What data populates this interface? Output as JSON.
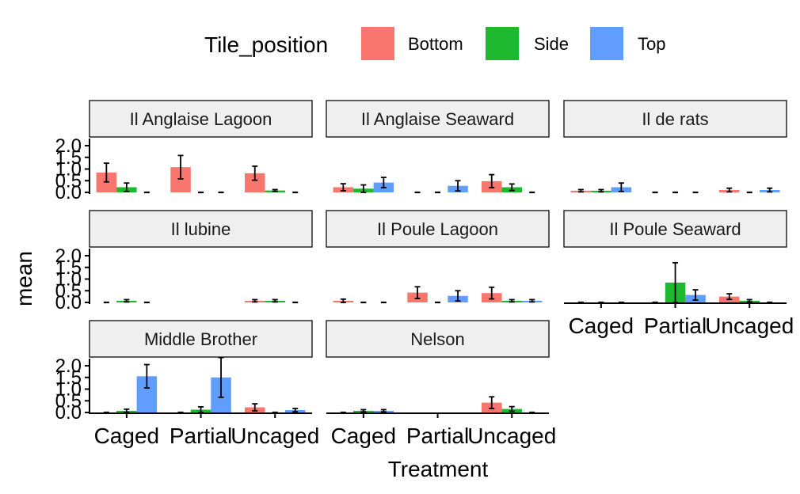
{
  "chart_data": {
    "type": "bar",
    "xlabel": "Treatment",
    "ylabel": "mean",
    "ylim": [
      0,
      2.0
    ],
    "yticks": [
      "0.0",
      "0.5",
      "1.0",
      "1.5",
      "2.0"
    ],
    "categories": [
      "Caged",
      "Partial",
      "Uncaged"
    ],
    "legend": {
      "title": "Tile_position",
      "position": "top",
      "entries": [
        {
          "name": "Bottom",
          "color": "#F8766D"
        },
        {
          "name": "Side",
          "color": "#1DB82D"
        },
        {
          "name": "Top",
          "color": "#619CFF"
        }
      ]
    },
    "panels": [
      {
        "title": "Il Anglaise Lagoon",
        "groups": [
          [
            {
              "v": 0.85,
              "e": 0.4
            },
            {
              "v": 0.22,
              "e": 0.18
            },
            {
              "v": 0
            }
          ],
          [
            {
              "v": 1.08,
              "e": 0.5
            },
            {
              "v": 0
            },
            {
              "v": 0
            }
          ],
          [
            {
              "v": 0.82,
              "e": 0.3
            },
            {
              "v": 0.08,
              "e": 0.04
            },
            {
              "v": 0
            }
          ]
        ]
      },
      {
        "title": "Il Anglaise Seaward",
        "groups": [
          [
            {
              "v": 0.22,
              "e": 0.15
            },
            {
              "v": 0.16,
              "e": 0.16
            },
            {
              "v": 0.42,
              "e": 0.22
            }
          ],
          [
            {
              "v": 0
            },
            {
              "v": 0
            },
            {
              "v": 0.28,
              "e": 0.22
            }
          ],
          [
            {
              "v": 0.48,
              "e": 0.28
            },
            {
              "v": 0.22,
              "e": 0.14
            },
            {
              "v": 0
            }
          ]
        ]
      },
      {
        "title": "Il de rats",
        "groups": [
          [
            {
              "v": 0.07,
              "e": 0.05
            },
            {
              "v": 0.07,
              "e": 0.05
            },
            {
              "v": 0.22,
              "e": 0.18
            }
          ],
          [
            {
              "v": 0
            },
            {
              "v": 0
            },
            {
              "v": 0
            }
          ],
          [
            {
              "v": 0.1,
              "e": 0.08
            },
            {
              "v": 0
            },
            {
              "v": 0.1,
              "e": 0.08
            }
          ]
        ]
      },
      {
        "title": "Il lubine",
        "groups": [
          [
            {
              "v": 0
            },
            {
              "v": 0.07,
              "e": 0.05
            },
            {
              "v": 0
            }
          ],
          [
            null,
            null,
            null
          ],
          [
            {
              "v": 0.07,
              "e": 0.05
            },
            {
              "v": 0.07,
              "e": 0.05
            },
            {
              "v": 0
            }
          ]
        ]
      },
      {
        "title": "Il Poule Lagoon",
        "groups": [
          [
            {
              "v": 0.07,
              "e": 0.07
            },
            {
              "v": 0
            },
            {
              "v": 0
            }
          ],
          [
            {
              "v": 0.42,
              "e": 0.25
            },
            {
              "v": 0
            },
            {
              "v": 0.28,
              "e": 0.22
            }
          ],
          [
            {
              "v": 0.4,
              "e": 0.25
            },
            {
              "v": 0.07,
              "e": 0.05
            },
            {
              "v": 0.07,
              "e": 0.05
            }
          ]
        ]
      },
      {
        "title": "Il Poule Seaward",
        "groups": [
          [
            {
              "v": 0
            },
            {
              "v": 0
            },
            {
              "v": 0
            }
          ],
          [
            {
              "v": 0
            },
            {
              "v": 0.85,
              "e": 0.85
            },
            {
              "v": 0.32,
              "e": 0.22
            }
          ],
          [
            {
              "v": 0.25,
              "e": 0.12
            },
            {
              "v": 0.07,
              "e": 0.05
            },
            {
              "v": 0
            }
          ]
        ]
      },
      {
        "title": "Middle Brother",
        "groups": [
          [
            {
              "v": 0
            },
            {
              "v": 0.07,
              "e": 0.07
            },
            {
              "v": 1.55,
              "e": 0.5
            }
          ],
          [
            {
              "v": 0
            },
            {
              "v": 0.12,
              "e": 0.12
            },
            {
              "v": 1.5,
              "e": 0.85
            }
          ],
          [
            {
              "v": 0.22,
              "e": 0.15
            },
            {
              "v": 0
            },
            {
              "v": 0.1,
              "e": 0.07
            }
          ]
        ]
      },
      {
        "title": "Nelson",
        "groups": [
          [
            {
              "v": 0
            },
            {
              "v": 0.07,
              "e": 0.05
            },
            {
              "v": 0.07,
              "e": 0.05
            }
          ],
          [
            null,
            null,
            null
          ],
          [
            {
              "v": 0.42,
              "e": 0.25
            },
            {
              "v": 0.15,
              "e": 0.1
            },
            {
              "v": 0
            }
          ]
        ]
      }
    ]
  }
}
